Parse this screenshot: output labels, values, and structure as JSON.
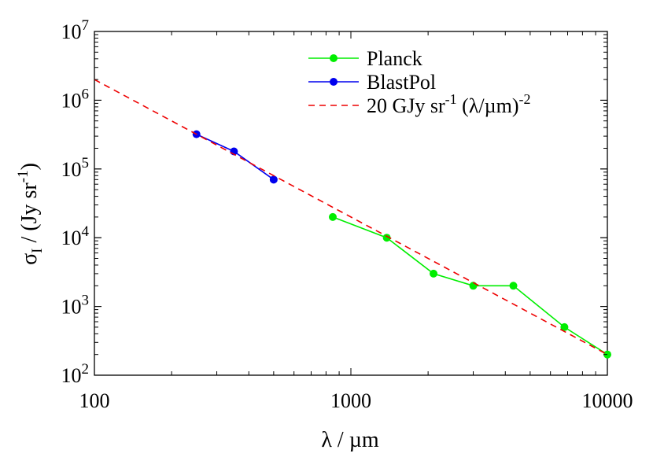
{
  "chart_data": {
    "type": "line",
    "x_scale": "log",
    "y_scale": "log",
    "xlim": [
      100,
      10000
    ],
    "ylim": [
      100,
      10000000
    ],
    "xlabel": "λ / µm",
    "ylabel": {
      "base": "σ",
      "sub": "I",
      "mid": " / (Jy sr",
      "sup": "-1",
      "end": ")"
    },
    "x_ticks": [
      {
        "value": 100,
        "label": "100"
      },
      {
        "value": 1000,
        "label": "1000"
      },
      {
        "value": 10000,
        "label": "10000"
      }
    ],
    "y_ticks": [
      {
        "value": 100,
        "base": "10",
        "exp": "2"
      },
      {
        "value": 1000,
        "base": "10",
        "exp": "3"
      },
      {
        "value": 10000,
        "base": "10",
        "exp": "4"
      },
      {
        "value": 100000,
        "base": "10",
        "exp": "5"
      },
      {
        "value": 1000000,
        "base": "10",
        "exp": "6"
      },
      {
        "value": 10000000,
        "base": "10",
        "exp": "7"
      }
    ],
    "legend_position": "top-right",
    "series": [
      {
        "name": "Planck",
        "color": "#00ee00",
        "style": "line-points",
        "x": [
          850,
          1380,
          2100,
          3000,
          4300,
          6800,
          10000
        ],
        "y": [
          20000,
          10000,
          3000,
          2000,
          2000,
          500,
          200
        ]
      },
      {
        "name": "BlastPol",
        "color": "#0000ee",
        "style": "line-points",
        "x": [
          250,
          350,
          500
        ],
        "y": [
          320000,
          180000,
          70000
        ]
      },
      {
        "name": "20 GJy sr-1 (λ/µm)-2",
        "label_parts": {
          "a": "20 GJy sr",
          "a_sup": "-1",
          "b": " (λ/µm)",
          "b_sup": "-2"
        },
        "color": "#ee0000",
        "style": "dashed",
        "amplitude": 20000000000,
        "exponent": -2
      }
    ]
  }
}
